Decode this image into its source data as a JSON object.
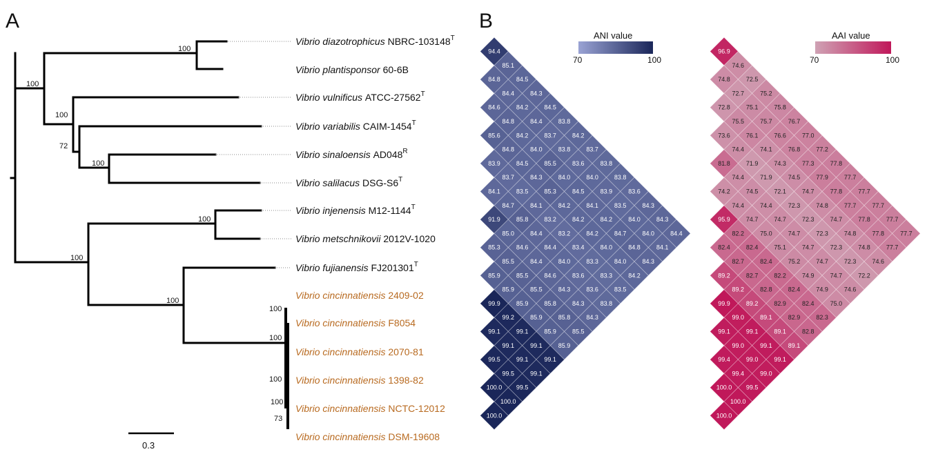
{
  "panels": {
    "tree": "A",
    "heatmap": "B"
  },
  "tree": {
    "scale_label": "0.3",
    "taxa": [
      {
        "genus": "Vibrio",
        "species": "diazotrophicus",
        "strain": "NBRC-103148",
        "sup": "T",
        "highlight": false
      },
      {
        "genus": "Vibrio",
        "species": "plantisponsor",
        "strain": "60-6B",
        "sup": "",
        "highlight": false
      },
      {
        "genus": "Vibrio",
        "species": "vulnificus",
        "strain": "ATCC-27562",
        "sup": "T",
        "highlight": false
      },
      {
        "genus": "Vibrio",
        "species": "variabilis",
        "strain": "CAIM-1454",
        "sup": "T",
        "highlight": false
      },
      {
        "genus": "Vibrio",
        "species": "sinaloensis",
        "strain": "AD048",
        "sup": "R",
        "highlight": false
      },
      {
        "genus": "Vibrio",
        "species": "salilacus",
        "strain": "DSG-S6",
        "sup": "T",
        "highlight": false
      },
      {
        "genus": "Vibrio",
        "species": "injenensis",
        "strain": "M12-1144",
        "sup": "T",
        "highlight": false
      },
      {
        "genus": "Vibrio",
        "species": "metschnikovii",
        "strain": "2012V-1020",
        "sup": "",
        "highlight": false
      },
      {
        "genus": "Vibrio",
        "species": "fujianensis",
        "strain": "FJ201301",
        "sup": "T",
        "highlight": false
      },
      {
        "genus": "Vibrio",
        "species": "cincinnatiensis",
        "strain": "2409-02",
        "sup": "",
        "highlight": true
      },
      {
        "genus": "Vibrio",
        "species": "cincinnatiensis",
        "strain": "F8054",
        "sup": "",
        "highlight": true
      },
      {
        "genus": "Vibrio",
        "species": "cincinnatiensis",
        "strain": "2070-81",
        "sup": "",
        "highlight": true
      },
      {
        "genus": "Vibrio",
        "species": "cincinnatiensis",
        "strain": "1398-82",
        "sup": "",
        "highlight": true
      },
      {
        "genus": "Vibrio",
        "species": "cincinnatiensis",
        "strain": "NCTC-12012",
        "sup": "",
        "highlight": true
      },
      {
        "genus": "Vibrio",
        "species": "cincinnatiensis",
        "strain": "DSM-19608",
        "sup": "",
        "highlight": true
      }
    ],
    "bootstrap_values": [
      "100",
      "100",
      "100",
      "72",
      "100",
      "100",
      "100",
      "100",
      "100",
      "100",
      "100",
      "100",
      "73"
    ]
  },
  "heatmaps": {
    "ani": {
      "legend_title": "ANI value",
      "min_label": "70",
      "max_label": "100",
      "min": 70,
      "max": 100,
      "color_low": "#9aa3d4",
      "color_high": "#1a2659",
      "rows": [
        [
          "94.4"
        ],
        [
          "85.1"
        ],
        [
          "84.8",
          "84.5"
        ],
        [
          "84.4",
          "84.3"
        ],
        [
          "84.6",
          "84.2",
          "84.5"
        ],
        [
          "84.8",
          "84.4",
          "83.8"
        ],
        [
          "85.6",
          "84.2",
          "83.7",
          "84.2"
        ],
        [
          "84.8",
          "84.0",
          "83.8",
          "83.7"
        ],
        [
          "83.9",
          "84.5",
          "85.5",
          "83.6",
          "83.8"
        ],
        [
          "83.7",
          "84.3",
          "84.0",
          "84.0",
          "83.8"
        ],
        [
          "84.1",
          "83.5",
          "85.3",
          "84.5",
          "83.9",
          "83.6"
        ],
        [
          "84.7",
          "84.1",
          "84.2",
          "84.1",
          "83.5",
          "84.3"
        ],
        [
          "91.9",
          "85.8",
          "83.2",
          "84.2",
          "84.2",
          "84.0",
          "84.3"
        ],
        [
          "85.0",
          "84.4",
          "83.2",
          "84.2",
          "84.7",
          "84.0",
          "84.4"
        ],
        [
          "85.3",
          "84.6",
          "84.4",
          "83.4",
          "84.0",
          "84.8",
          "84.1"
        ],
        [
          "85.5",
          "84.4",
          "84.0",
          "83.3",
          "84.0",
          "84.3"
        ],
        [
          "85.9",
          "85.5",
          "84.6",
          "83.6",
          "83.3",
          "84.2"
        ],
        [
          "85.9",
          "85.5",
          "84.3",
          "83.6",
          "83.5"
        ],
        [
          "99.9",
          "85.9",
          "85.8",
          "84.3",
          "83.8"
        ],
        [
          "99.2",
          "85.9",
          "85.8",
          "84.3"
        ],
        [
          "99.1",
          "99.1",
          "85.9",
          "85.5"
        ],
        [
          "99.1",
          "99.1",
          "85.9"
        ],
        [
          "99.5",
          "99.1",
          "99.1"
        ],
        [
          "99.5",
          "99.1"
        ],
        [
          "100.0",
          "99.5"
        ],
        [
          "100.0"
        ],
        [
          "100.0"
        ]
      ]
    },
    "aai": {
      "legend_title": "AAI value",
      "min_label": "70",
      "max_label": "100",
      "min": 70,
      "max": 100,
      "color_low": "#cfa2b4",
      "color_high": "#c0185a",
      "rows": [
        [
          "96.9"
        ],
        [
          "74.6"
        ],
        [
          "74.8",
          "72.5"
        ],
        [
          "72.7",
          "75.2"
        ],
        [
          "72.8",
          "75.1",
          "75.8"
        ],
        [
          "75.5",
          "75.7",
          "76.7"
        ],
        [
          "73.6",
          "76.1",
          "76.6",
          "77.0"
        ],
        [
          "74.4",
          "74.1",
          "76.8",
          "77.2"
        ],
        [
          "81.8",
          "71.9",
          "74.3",
          "77.3",
          "77.8"
        ],
        [
          "74.4",
          "71.9",
          "74.5",
          "77.9",
          "77.7"
        ],
        [
          "74.2",
          "74.5",
          "72.1",
          "74.7",
          "77.8",
          "77.7"
        ],
        [
          "74.4",
          "74.4",
          "72.3",
          "74.8",
          "77.7",
          "77.7"
        ],
        [
          "95.9",
          "74.7",
          "74.7",
          "72.3",
          "74.7",
          "77.8",
          "77.7"
        ],
        [
          "82.2",
          "75.0",
          "74.7",
          "72.3",
          "74.8",
          "77.8",
          "77.7"
        ],
        [
          "82.4",
          "82.4",
          "75.1",
          "74.7",
          "72.3",
          "74.8",
          "77.7"
        ],
        [
          "82.7",
          "82.4",
          "75.2",
          "74.7",
          "72.3",
          "74.6"
        ],
        [
          "89.2",
          "82.7",
          "82.2",
          "74.9",
          "74.7",
          "72.2"
        ],
        [
          "89.2",
          "82.8",
          "82.4",
          "74.9",
          "74.6"
        ],
        [
          "99.9",
          "89.2",
          "82.9",
          "82.4",
          "75.0"
        ],
        [
          "99.0",
          "89.1",
          "82.9",
          "82.3"
        ],
        [
          "99.1",
          "99.1",
          "89.1",
          "82.8"
        ],
        [
          "99.0",
          "99.1",
          "89.1"
        ],
        [
          "99.4",
          "99.0",
          "99.1"
        ],
        [
          "99.4",
          "99.0"
        ],
        [
          "100.0",
          "99.5"
        ],
        [
          "100.0"
        ],
        [
          "100.0"
        ]
      ]
    }
  },
  "colors": {
    "highlight_taxon": "#b86a20",
    "taxon": "#111111",
    "branch": "#000000"
  }
}
